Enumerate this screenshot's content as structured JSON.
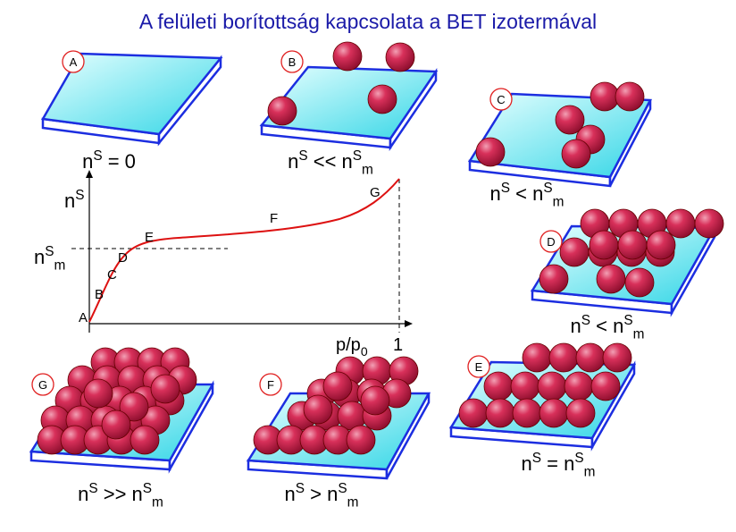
{
  "title": "A felületi borítottság kapcsolata a BET izotermával",
  "panels": [
    {
      "label": "A",
      "caption": [
        {
          "text": "n"
        },
        {
          "sup": "S"
        },
        {
          "text": " = 0"
        }
      ]
    },
    {
      "label": "B",
      "caption": [
        {
          "text": "n"
        },
        {
          "sup": "S"
        },
        {
          "text": " << n"
        },
        {
          "sup": "S"
        },
        {
          "sub": "m"
        }
      ]
    },
    {
      "label": "C",
      "caption": [
        {
          "text": "n"
        },
        {
          "sup": "S"
        },
        {
          "text": " < n"
        },
        {
          "sup": "S"
        },
        {
          "sub": "m"
        }
      ]
    },
    {
      "label": "D",
      "caption": [
        {
          "text": "n"
        },
        {
          "sup": "S"
        },
        {
          "text": " < n"
        },
        {
          "sup": "S"
        },
        {
          "sub": "m"
        }
      ]
    },
    {
      "label": "E",
      "caption": [
        {
          "text": "n"
        },
        {
          "sup": "S"
        },
        {
          "text": " = n"
        },
        {
          "sup": "S"
        },
        {
          "sub": "m"
        }
      ]
    },
    {
      "label": "F",
      "caption": [
        {
          "text": "n"
        },
        {
          "sup": "S"
        },
        {
          "text": " > n"
        },
        {
          "sup": "S"
        },
        {
          "sub": "m"
        }
      ]
    },
    {
      "label": "G",
      "caption": [
        {
          "text": "n"
        },
        {
          "sup": "S"
        },
        {
          "text": " >> n"
        },
        {
          "sup": "S"
        },
        {
          "sub": "m"
        }
      ]
    }
  ],
  "graph": {
    "y_label": [
      {
        "text": "n"
      },
      {
        "sup": "S"
      }
    ],
    "ym_label": [
      {
        "text": "n"
      },
      {
        "sup": "S"
      },
      {
        "sub": "m"
      }
    ],
    "x_label": [
      {
        "text": "p/p"
      },
      {
        "sub": "0"
      }
    ],
    "x_end": "1",
    "points": [
      "A",
      "B",
      "C",
      "D",
      "E",
      "F",
      "G"
    ]
  }
}
